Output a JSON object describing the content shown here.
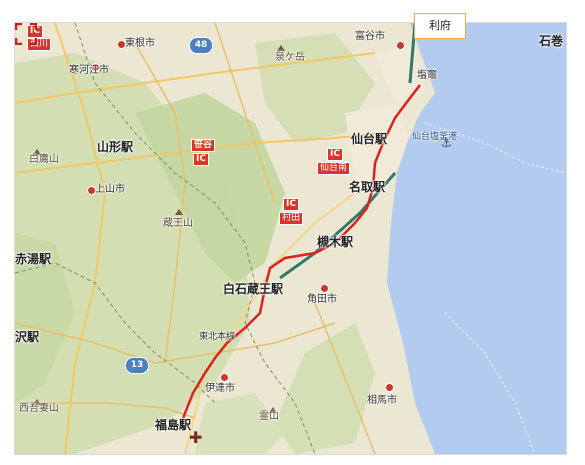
{
  "tooltip": {
    "text": "利府"
  },
  "labels": {
    "nishikawa_ic": "西川",
    "higashine": "東根市",
    "sagae": "寒河江市",
    "route48": "48",
    "izumigatake": "泉ケ岳",
    "tomiya": "富谷市",
    "ishinomaki": "石巻",
    "shiogama_area": "塩竈",
    "yamagata_st": "山形駅",
    "kamiyama": "上山市",
    "shirataka": "白鷹山",
    "sendai_st": "仙台駅",
    "sendaishiogama_port": "仙台塩釜港",
    "sasaya_ic": "笹谷",
    "sendainan_ic": "仙台南",
    "natori_st": "名取駅",
    "murata_ic": "村田",
    "zao": "蔵王山",
    "iwanuma_st": "槻木駅",
    "akayu_st": "赤湯駅",
    "shiroishizao_st": "白石蔵王駅",
    "kakuda": "角田市",
    "yonezawa_st": "沢駅",
    "tohoku_line": "東北本線",
    "route13": "13",
    "date": "伊達市",
    "nishiazuma": "西吾妻山",
    "ryozen": "霊山",
    "soma": "相馬市",
    "fukushima_st": "福島駅",
    "ic": "IC"
  },
  "colors": {
    "land": "#e9e6cf",
    "forest": "#c9dba8",
    "sea": "#b4cbf0",
    "route": "#d9231c",
    "rail": "#2f7a6a"
  }
}
